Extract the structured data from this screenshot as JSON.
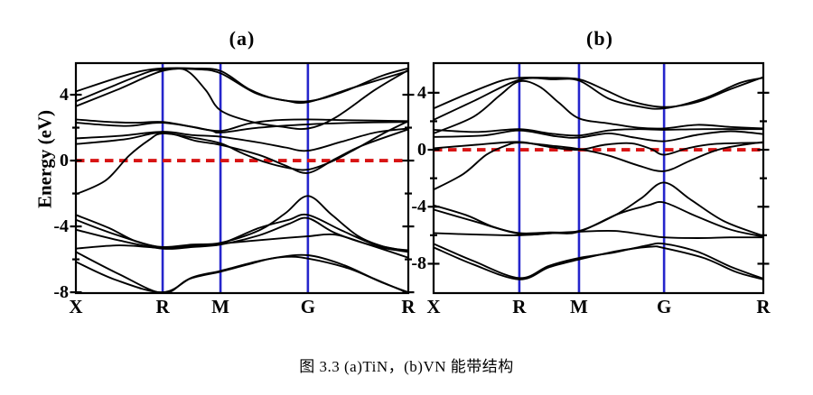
{
  "figure": {
    "caption": "图 3.3 (a)TiN，(b)VN 能带结构"
  },
  "colors": {
    "band": "#000000",
    "fermi_line": "#d81414",
    "symmetry_line": "#2525cc",
    "frame": "#000000",
    "background": "#ffffff"
  },
  "chart_data": [
    {
      "type": "line",
      "title": "(a)",
      "material": "TiN",
      "ylabel": "Energy (eV)",
      "x_tick_labels": [
        "X",
        "R",
        "M",
        "G",
        "R"
      ],
      "x_tick_pos": [
        0,
        0.261,
        0.435,
        0.698,
        1
      ],
      "ylim": [
        -8.05,
        5.92
      ],
      "yticks_major": [
        4,
        0,
        -4,
        -8
      ],
      "yticks_minor": [
        2,
        -2,
        -6
      ],
      "fermi_energy": 0,
      "grid": false,
      "legend": "none",
      "bands": [
        [
          [
            0,
            4.2
          ],
          [
            0.12,
            5.0
          ],
          [
            0.2,
            5.45
          ],
          [
            0.261,
            5.6
          ],
          [
            0.35,
            5.6
          ],
          [
            0.435,
            5.45
          ],
          [
            0.52,
            4.35
          ],
          [
            0.6,
            3.75
          ],
          [
            0.698,
            3.6
          ],
          [
            0.8,
            4.15
          ],
          [
            0.92,
            5.15
          ],
          [
            1,
            5.6
          ]
        ],
        [
          [
            0,
            3.6
          ],
          [
            0.12,
            4.6
          ],
          [
            0.22,
            5.4
          ],
          [
            0.261,
            5.5
          ],
          [
            0.33,
            5.5
          ],
          [
            0.39,
            4.3
          ],
          [
            0.435,
            3.05
          ],
          [
            0.53,
            2.35
          ],
          [
            0.62,
            2.05
          ],
          [
            0.698,
            1.95
          ],
          [
            0.78,
            2.6
          ],
          [
            0.9,
            4.3
          ],
          [
            1,
            5.5
          ]
        ],
        [
          [
            0,
            3.3
          ],
          [
            0.13,
            4.35
          ],
          [
            0.261,
            5.45
          ],
          [
            0.36,
            5.55
          ],
          [
            0.435,
            5.3
          ],
          [
            0.54,
            4.1
          ],
          [
            0.63,
            3.65
          ],
          [
            0.698,
            3.55
          ],
          [
            0.83,
            4.4
          ],
          [
            1,
            5.45
          ]
        ],
        [
          [
            0,
            2.5
          ],
          [
            0.1,
            2.35
          ],
          [
            0.18,
            2.3
          ],
          [
            0.261,
            2.35
          ],
          [
            0.35,
            2.05
          ],
          [
            0.435,
            1.8
          ],
          [
            0.52,
            2.25
          ],
          [
            0.6,
            2.45
          ],
          [
            0.698,
            2.5
          ],
          [
            0.82,
            2.45
          ],
          [
            1,
            2.4
          ]
        ],
        [
          [
            0,
            2.3
          ],
          [
            0.15,
            2.1
          ],
          [
            0.261,
            2.3
          ],
          [
            0.4,
            1.85
          ],
          [
            0.435,
            1.7
          ],
          [
            0.55,
            2.0
          ],
          [
            0.698,
            2.2
          ],
          [
            0.85,
            2.3
          ],
          [
            1,
            2.35
          ]
        ],
        [
          [
            0,
            1.35
          ],
          [
            0.13,
            1.5
          ],
          [
            0.261,
            1.75
          ],
          [
            0.35,
            1.55
          ],
          [
            0.435,
            1.45
          ],
          [
            0.55,
            1.1
          ],
          [
            0.63,
            0.8
          ],
          [
            0.698,
            0.6
          ],
          [
            0.8,
            1.15
          ],
          [
            0.9,
            1.7
          ],
          [
            1,
            1.95
          ]
        ],
        [
          [
            0,
            1.0
          ],
          [
            0.15,
            1.3
          ],
          [
            0.261,
            1.7
          ],
          [
            0.36,
            1.2
          ],
          [
            0.435,
            0.95
          ],
          [
            0.55,
            0.35
          ],
          [
            0.63,
            -0.3
          ],
          [
            0.698,
            -0.75
          ],
          [
            0.78,
            0.1
          ],
          [
            0.86,
            0.9
          ],
          [
            1,
            1.9
          ]
        ],
        [
          [
            0,
            -2.05
          ],
          [
            0.09,
            -1.2
          ],
          [
            0.16,
            0.3
          ],
          [
            0.22,
            1.25
          ],
          [
            0.261,
            1.65
          ],
          [
            0.35,
            1.4
          ],
          [
            0.435,
            1.05
          ],
          [
            0.5,
            0.45
          ],
          [
            0.57,
            -0.1
          ],
          [
            0.64,
            -0.45
          ],
          [
            0.698,
            -0.55
          ],
          [
            0.77,
            -0.05
          ],
          [
            0.85,
            0.8
          ],
          [
            0.93,
            1.7
          ],
          [
            1,
            2.4
          ]
        ],
        [
          [
            0,
            -3.3
          ],
          [
            0.1,
            -4.1
          ],
          [
            0.18,
            -4.9
          ],
          [
            0.261,
            -5.25
          ],
          [
            0.35,
            -5.1
          ],
          [
            0.435,
            -5.0
          ],
          [
            0.55,
            -4.25
          ],
          [
            0.63,
            -3.2
          ],
          [
            0.698,
            -2.15
          ],
          [
            0.77,
            -3.3
          ],
          [
            0.85,
            -4.6
          ],
          [
            0.93,
            -5.25
          ],
          [
            1,
            -5.45
          ]
        ],
        [
          [
            0,
            -3.6
          ],
          [
            0.12,
            -4.5
          ],
          [
            0.261,
            -5.3
          ],
          [
            0.36,
            -5.15
          ],
          [
            0.435,
            -5.05
          ],
          [
            0.55,
            -4.1
          ],
          [
            0.64,
            -3.6
          ],
          [
            0.698,
            -3.3
          ],
          [
            0.8,
            -4.25
          ],
          [
            0.9,
            -5.1
          ],
          [
            1,
            -5.5
          ]
        ],
        [
          [
            0,
            -5.35
          ],
          [
            0.13,
            -5.15
          ],
          [
            0.261,
            -5.3
          ],
          [
            0.36,
            -5.2
          ],
          [
            0.435,
            -5.05
          ],
          [
            0.6,
            -4.75
          ],
          [
            0.698,
            -4.6
          ],
          [
            0.78,
            -4.5
          ],
          [
            0.88,
            -5.1
          ],
          [
            1,
            -5.9
          ]
        ],
        [
          [
            0,
            -4.2
          ],
          [
            0.13,
            -4.85
          ],
          [
            0.261,
            -5.35
          ],
          [
            0.35,
            -5.25
          ],
          [
            0.435,
            -5.1
          ],
          [
            0.55,
            -4.55
          ],
          [
            0.64,
            -3.85
          ],
          [
            0.698,
            -3.5
          ],
          [
            0.78,
            -4.4
          ],
          [
            0.9,
            -5.2
          ],
          [
            1,
            -5.55
          ]
        ],
        [
          [
            0,
            -5.55
          ],
          [
            0.13,
            -6.9
          ],
          [
            0.261,
            -8.05
          ],
          [
            0.34,
            -7.2
          ],
          [
            0.435,
            -6.75
          ],
          [
            0.52,
            -6.3
          ],
          [
            0.6,
            -5.9
          ],
          [
            0.698,
            -5.75
          ],
          [
            0.8,
            -6.3
          ],
          [
            0.9,
            -7.2
          ],
          [
            1,
            -8.05
          ]
        ],
        [
          [
            0,
            -6.15
          ],
          [
            0.12,
            -7.25
          ],
          [
            0.261,
            -8.0
          ],
          [
            0.35,
            -7.1
          ],
          [
            0.435,
            -6.7
          ],
          [
            0.55,
            -6.1
          ],
          [
            0.63,
            -5.85
          ],
          [
            0.698,
            -5.95
          ],
          [
            0.82,
            -6.55
          ],
          [
            0.92,
            -7.4
          ],
          [
            1,
            -8.0
          ]
        ]
      ]
    },
    {
      "type": "line",
      "title": "(b)",
      "material": "VN",
      "ylabel": "Energy (eV)",
      "x_tick_labels": [
        "X",
        "R",
        "M",
        "G",
        "R"
      ],
      "x_tick_pos": [
        0,
        0.26,
        0.441,
        0.699,
        1
      ],
      "ylim": [
        -10.06,
        6.08
      ],
      "yticks_major": [
        4,
        0,
        -4,
        -8
      ],
      "yticks_minor": [
        2,
        -2,
        -6
      ],
      "fermi_energy": 0,
      "grid": false,
      "legend": "none",
      "bands": [
        [
          [
            0,
            2.9
          ],
          [
            0.1,
            3.9
          ],
          [
            0.2,
            4.8
          ],
          [
            0.26,
            5.05
          ],
          [
            0.35,
            5.05
          ],
          [
            0.441,
            4.95
          ],
          [
            0.52,
            4.2
          ],
          [
            0.6,
            3.4
          ],
          [
            0.699,
            3.0
          ],
          [
            0.8,
            3.35
          ],
          [
            0.9,
            4.25
          ],
          [
            1,
            5.1
          ]
        ],
        [
          [
            0,
            2.1
          ],
          [
            0.12,
            3.4
          ],
          [
            0.26,
            4.9
          ],
          [
            0.36,
            4.95
          ],
          [
            0.441,
            4.85
          ],
          [
            0.53,
            3.6
          ],
          [
            0.62,
            3.05
          ],
          [
            0.699,
            2.9
          ],
          [
            0.82,
            3.6
          ],
          [
            0.93,
            4.7
          ],
          [
            1,
            5.05
          ]
        ],
        [
          [
            0,
            1.15
          ],
          [
            0.12,
            2.3
          ],
          [
            0.2,
            3.8
          ],
          [
            0.26,
            4.8
          ],
          [
            0.32,
            4.45
          ],
          [
            0.38,
            3.3
          ],
          [
            0.441,
            2.2
          ],
          [
            0.53,
            1.85
          ],
          [
            0.62,
            1.55
          ],
          [
            0.699,
            1.5
          ],
          [
            0.8,
            1.75
          ],
          [
            0.9,
            1.6
          ],
          [
            1,
            1.5
          ]
        ],
        [
          [
            0,
            1.4
          ],
          [
            0.13,
            1.25
          ],
          [
            0.26,
            1.45
          ],
          [
            0.35,
            1.15
          ],
          [
            0.441,
            1.0
          ],
          [
            0.53,
            1.35
          ],
          [
            0.62,
            1.45
          ],
          [
            0.699,
            1.4
          ],
          [
            0.82,
            1.45
          ],
          [
            1,
            1.45
          ]
        ],
        [
          [
            0,
            0.9
          ],
          [
            0.15,
            1.0
          ],
          [
            0.26,
            1.35
          ],
          [
            0.37,
            0.95
          ],
          [
            0.441,
            0.85
          ],
          [
            0.53,
            1.15
          ],
          [
            0.61,
            0.85
          ],
          [
            0.699,
            0.6
          ],
          [
            0.8,
            1.05
          ],
          [
            0.9,
            1.3
          ],
          [
            1,
            1.1
          ]
        ],
        [
          [
            0,
            0.1
          ],
          [
            0.13,
            0.35
          ],
          [
            0.26,
            0.55
          ],
          [
            0.35,
            0.2
          ],
          [
            0.441,
            0.0
          ],
          [
            0.52,
            0.35
          ],
          [
            0.6,
            0.45
          ],
          [
            0.66,
            0.05
          ],
          [
            0.699,
            -0.35
          ],
          [
            0.77,
            0.1
          ],
          [
            0.85,
            0.4
          ],
          [
            1,
            0.5
          ]
        ],
        [
          [
            0,
            -2.8
          ],
          [
            0.09,
            -1.7
          ],
          [
            0.16,
            -0.35
          ],
          [
            0.22,
            0.3
          ],
          [
            0.26,
            0.5
          ],
          [
            0.35,
            0.3
          ],
          [
            0.441,
            0.05
          ],
          [
            0.53,
            -0.4
          ],
          [
            0.62,
            -1.1
          ],
          [
            0.699,
            -1.5
          ],
          [
            0.78,
            -0.75
          ],
          [
            0.87,
            0.05
          ],
          [
            1,
            0.55
          ]
        ],
        [
          [
            0,
            -3.9
          ],
          [
            0.1,
            -4.6
          ],
          [
            0.18,
            -5.4
          ],
          [
            0.26,
            -5.85
          ],
          [
            0.35,
            -5.8
          ],
          [
            0.441,
            -5.7
          ],
          [
            0.55,
            -4.6
          ],
          [
            0.63,
            -3.4
          ],
          [
            0.699,
            -2.3
          ],
          [
            0.78,
            -3.5
          ],
          [
            0.88,
            -5.0
          ],
          [
            1,
            -6.05
          ]
        ],
        [
          [
            0,
            -4.2
          ],
          [
            0.12,
            -5.0
          ],
          [
            0.26,
            -5.9
          ],
          [
            0.36,
            -5.85
          ],
          [
            0.441,
            -5.75
          ],
          [
            0.56,
            -4.5
          ],
          [
            0.65,
            -3.9
          ],
          [
            0.699,
            -3.7
          ],
          [
            0.79,
            -4.6
          ],
          [
            0.9,
            -5.6
          ],
          [
            1,
            -6.1
          ]
        ],
        [
          [
            0,
            -5.85
          ],
          [
            0.13,
            -5.95
          ],
          [
            0.26,
            -6.0
          ],
          [
            0.36,
            -5.85
          ],
          [
            0.441,
            -5.75
          ],
          [
            0.55,
            -5.7
          ],
          [
            0.65,
            -6.0
          ],
          [
            0.699,
            -6.15
          ],
          [
            0.8,
            -6.2
          ],
          [
            0.9,
            -6.15
          ],
          [
            1,
            -6.15
          ]
        ],
        [
          [
            0,
            -6.6
          ],
          [
            0.12,
            -7.8
          ],
          [
            0.26,
            -9.0
          ],
          [
            0.35,
            -8.15
          ],
          [
            0.441,
            -7.6
          ],
          [
            0.55,
            -7.2
          ],
          [
            0.65,
            -6.7
          ],
          [
            0.699,
            -6.6
          ],
          [
            0.8,
            -7.15
          ],
          [
            0.9,
            -8.2
          ],
          [
            1,
            -9.05
          ]
        ],
        [
          [
            0,
            -6.85
          ],
          [
            0.12,
            -8.05
          ],
          [
            0.26,
            -9.1
          ],
          [
            0.35,
            -8.25
          ],
          [
            0.441,
            -7.7
          ],
          [
            0.56,
            -7.1
          ],
          [
            0.66,
            -6.8
          ],
          [
            0.699,
            -6.9
          ],
          [
            0.82,
            -7.6
          ],
          [
            0.92,
            -8.6
          ],
          [
            1,
            -9.1
          ]
        ]
      ]
    }
  ]
}
